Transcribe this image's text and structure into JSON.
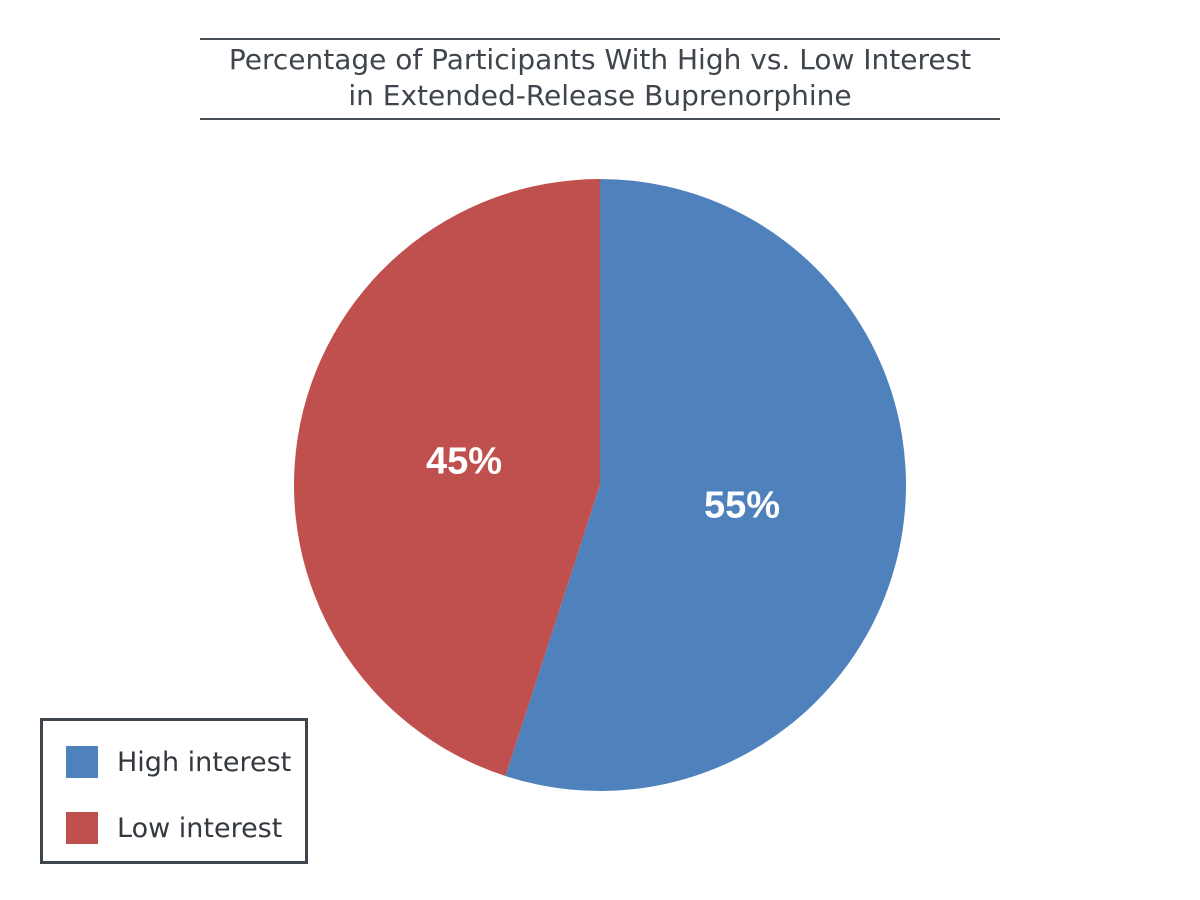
{
  "chart_data": {
    "type": "pie",
    "title_lines": [
      "Percentage of Participants  With High vs. Low Interest",
      "in Extended-Release Buprenorphine"
    ],
    "categories": [
      "High interest",
      "Low interest"
    ],
    "values": [
      55,
      45
    ],
    "value_labels": [
      "55%",
      "45%"
    ],
    "colors": [
      "#4f81bd",
      "#c0504d"
    ],
    "start": "12 o'clock",
    "direction": "clockwise",
    "legend_position": "bottom-left"
  }
}
